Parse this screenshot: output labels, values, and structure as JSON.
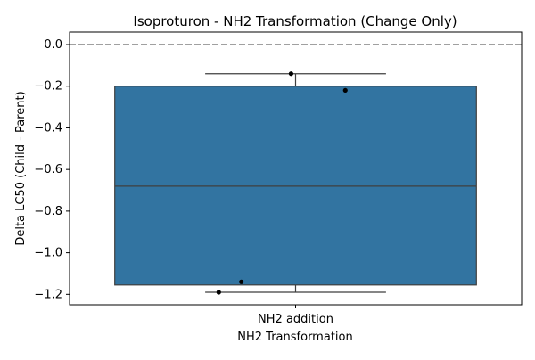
{
  "chart_data": {
    "type": "box",
    "title": "Isoproturon - NH2 Transformation (Change Only)",
    "xlabel": "NH2 Transformation",
    "ylabel": "Delta LC50 (Child - Parent)",
    "categories": [
      "NH2 addition"
    ],
    "ylim": [
      -1.25,
      0.06
    ],
    "yticks": [
      0.0,
      -0.2,
      -0.4,
      -0.6,
      -0.8,
      -1.0,
      -1.2
    ],
    "ytick_labels": [
      "0.0",
      "−0.2",
      "−0.4",
      "−0.6",
      "−0.8",
      "−1.0",
      "−1.2"
    ],
    "reference_line": {
      "y": 0.0,
      "style": "dashed",
      "color": "#808080"
    },
    "box": {
      "category": "NH2 addition",
      "q1": -1.155,
      "median": -0.68,
      "q3": -0.2,
      "whisker_low": -1.19,
      "whisker_high": -0.14,
      "fill": "#3274a1",
      "edge": "#3f3f3f"
    },
    "points": [
      {
        "category": "NH2 addition",
        "y": -0.14,
        "jitter": -0.01
      },
      {
        "category": "NH2 addition",
        "y": -0.22,
        "jitter": 0.11
      },
      {
        "category": "NH2 addition",
        "y": -1.14,
        "jitter": -0.12
      },
      {
        "category": "NH2 addition",
        "y": -1.19,
        "jitter": -0.17
      }
    ],
    "grid": false
  }
}
